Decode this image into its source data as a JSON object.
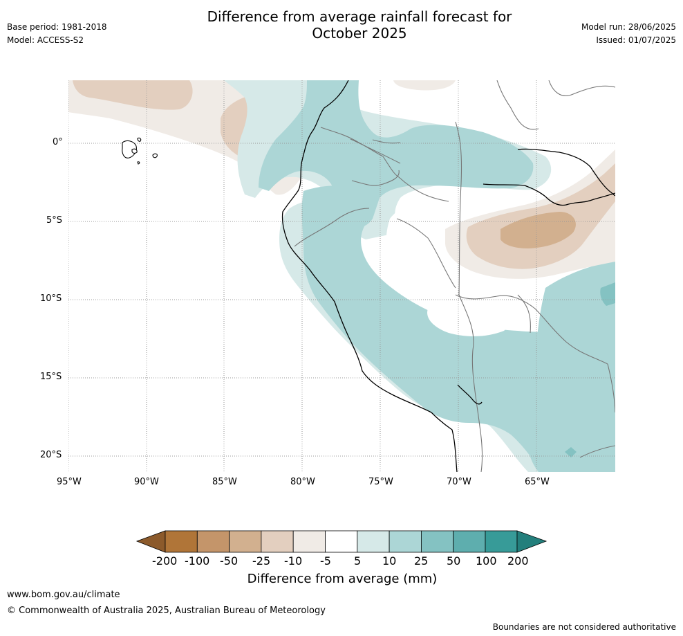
{
  "header": {
    "base_period": "Base period: 1981-2018",
    "model": "Model: ACCESS-S2",
    "title_line1": "Difference from average rainfall forecast for",
    "title_line2": "October 2025",
    "model_run": "Model run: 28/06/2025",
    "issued": "Issued: 01/07/2025"
  },
  "map": {
    "lat_labels": [
      "0°",
      "5°S",
      "10°S",
      "15°S",
      "20°S"
    ],
    "lon_labels": [
      "95°W",
      "90°W",
      "85°W",
      "80°W",
      "75°W",
      "70°W",
      "65°W"
    ],
    "palette": {
      "brown_200": "#8c5a2b",
      "brown_100": "#b07538",
      "brown_50": "#c4956a",
      "brown_25": "#d2b08f",
      "brown_10": "#e3cfbf",
      "brown_5": "#f0ebe6",
      "neutral": "#ffffff",
      "teal_5": "#d6e9e8",
      "teal_10": "#acd6d6",
      "teal_25": "#84c2c2",
      "teal_50": "#5eaeae",
      "teal_100": "#379b98",
      "teal_200": "#237f7c"
    }
  },
  "colorbar": {
    "ticks": [
      "-200",
      "-100",
      "-50",
      "-25",
      "-10",
      "-5",
      "5",
      "10",
      "25",
      "50",
      "100",
      "200"
    ],
    "label": "Difference from average (mm)"
  },
  "footer": {
    "website": "www.bom.gov.au/climate",
    "copyright": "© Commonwealth of Australia 2025, Australian Bureau of Meteorology",
    "disclaimer": "Boundaries are not considered authoritative"
  }
}
